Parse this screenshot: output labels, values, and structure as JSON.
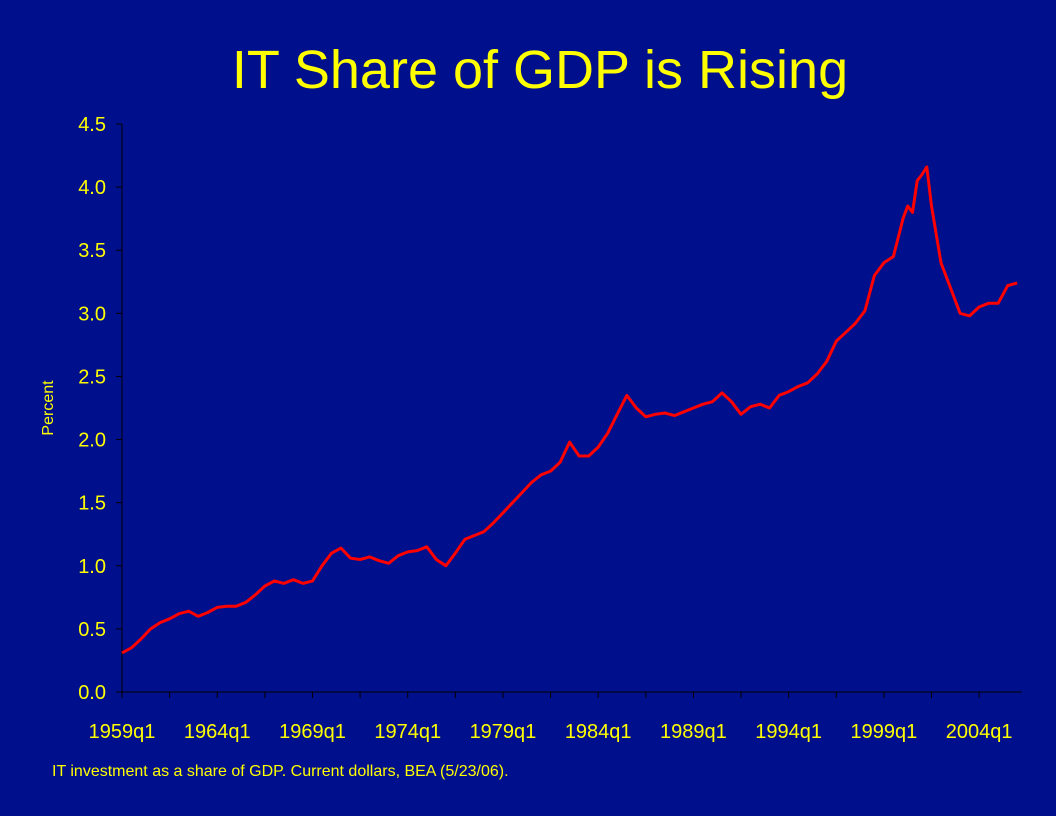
{
  "slide": {
    "title": "IT Share of GDP is Rising",
    "caption": "IT investment as a share of GDP.  Current dollars, BEA (5/23/06).",
    "background_color": "#000F8C",
    "text_color": "#FFFF00"
  },
  "chart_data": {
    "type": "line",
    "title": "IT Share of GDP is Rising",
    "xlabel": "",
    "ylabel": "Percent",
    "ylim": [
      0,
      4.5
    ],
    "yticks": [
      "0.0",
      "0.5",
      "1.0",
      "1.5",
      "2.0",
      "2.5",
      "3.0",
      "3.5",
      "4.0",
      "4.5"
    ],
    "xticks": [
      "1959q1",
      "1964q1",
      "1969q1",
      "1974q1",
      "1979q1",
      "1984q1",
      "1989q1",
      "1994q1",
      "1999q1",
      "2004q1"
    ],
    "x_range": [
      1959.0,
      2006.25
    ],
    "grid": false,
    "legend": "none",
    "series": [
      {
        "color": "#FF0000",
        "x": [
          1959.0,
          1959.5,
          1960.0,
          1960.5,
          1961.0,
          1961.5,
          1962.0,
          1962.5,
          1963.0,
          1963.5,
          1964.0,
          1964.5,
          1965.0,
          1965.5,
          1966.0,
          1966.5,
          1967.0,
          1967.5,
          1968.0,
          1968.5,
          1969.0,
          1969.5,
          1970.0,
          1970.5,
          1971.0,
          1971.5,
          1972.0,
          1972.5,
          1973.0,
          1973.5,
          1974.0,
          1974.5,
          1975.0,
          1975.5,
          1976.0,
          1976.5,
          1977.0,
          1977.5,
          1978.0,
          1978.5,
          1979.0,
          1979.5,
          1980.0,
          1980.5,
          1981.0,
          1981.5,
          1982.0,
          1982.5,
          1983.0,
          1983.5,
          1984.0,
          1984.5,
          1985.0,
          1985.5,
          1986.0,
          1986.5,
          1987.0,
          1987.5,
          1988.0,
          1988.5,
          1989.0,
          1989.5,
          1990.0,
          1990.5,
          1991.0,
          1991.5,
          1992.0,
          1992.5,
          1993.0,
          1993.5,
          1994.0,
          1994.5,
          1995.0,
          1995.5,
          1996.0,
          1996.5,
          1997.0,
          1997.5,
          1998.0,
          1998.5,
          1999.0,
          1999.5,
          2000.0,
          2000.25,
          2000.5,
          2000.75,
          2001.0,
          2001.25,
          2001.5,
          2002.0,
          2002.5,
          2003.0,
          2003.5,
          2004.0,
          2004.5,
          2005.0,
          2005.5,
          2006.0
        ],
        "y": [
          0.31,
          0.35,
          0.42,
          0.5,
          0.55,
          0.58,
          0.62,
          0.64,
          0.6,
          0.63,
          0.67,
          0.68,
          0.68,
          0.71,
          0.77,
          0.84,
          0.88,
          0.86,
          0.89,
          0.86,
          0.88,
          1.0,
          1.1,
          1.14,
          1.06,
          1.05,
          1.07,
          1.04,
          1.02,
          1.08,
          1.11,
          1.12,
          1.15,
          1.05,
          1.0,
          1.1,
          1.21,
          1.24,
          1.27,
          1.34,
          1.42,
          1.5,
          1.58,
          1.66,
          1.72,
          1.75,
          1.82,
          1.98,
          1.87,
          1.87,
          1.94,
          2.05,
          2.2,
          2.35,
          2.25,
          2.18,
          2.2,
          2.21,
          2.19,
          2.22,
          2.25,
          2.28,
          2.3,
          2.37,
          2.3,
          2.2,
          2.26,
          2.28,
          2.25,
          2.35,
          2.38,
          2.42,
          2.45,
          2.52,
          2.62,
          2.78,
          2.85,
          2.92,
          3.02,
          3.3,
          3.4,
          3.45,
          3.75,
          3.85,
          3.8,
          4.05,
          4.1,
          4.16,
          3.85,
          3.4,
          3.2,
          3.0,
          2.98,
          3.05,
          3.08,
          3.08,
          3.22,
          3.24
        ]
      }
    ]
  }
}
